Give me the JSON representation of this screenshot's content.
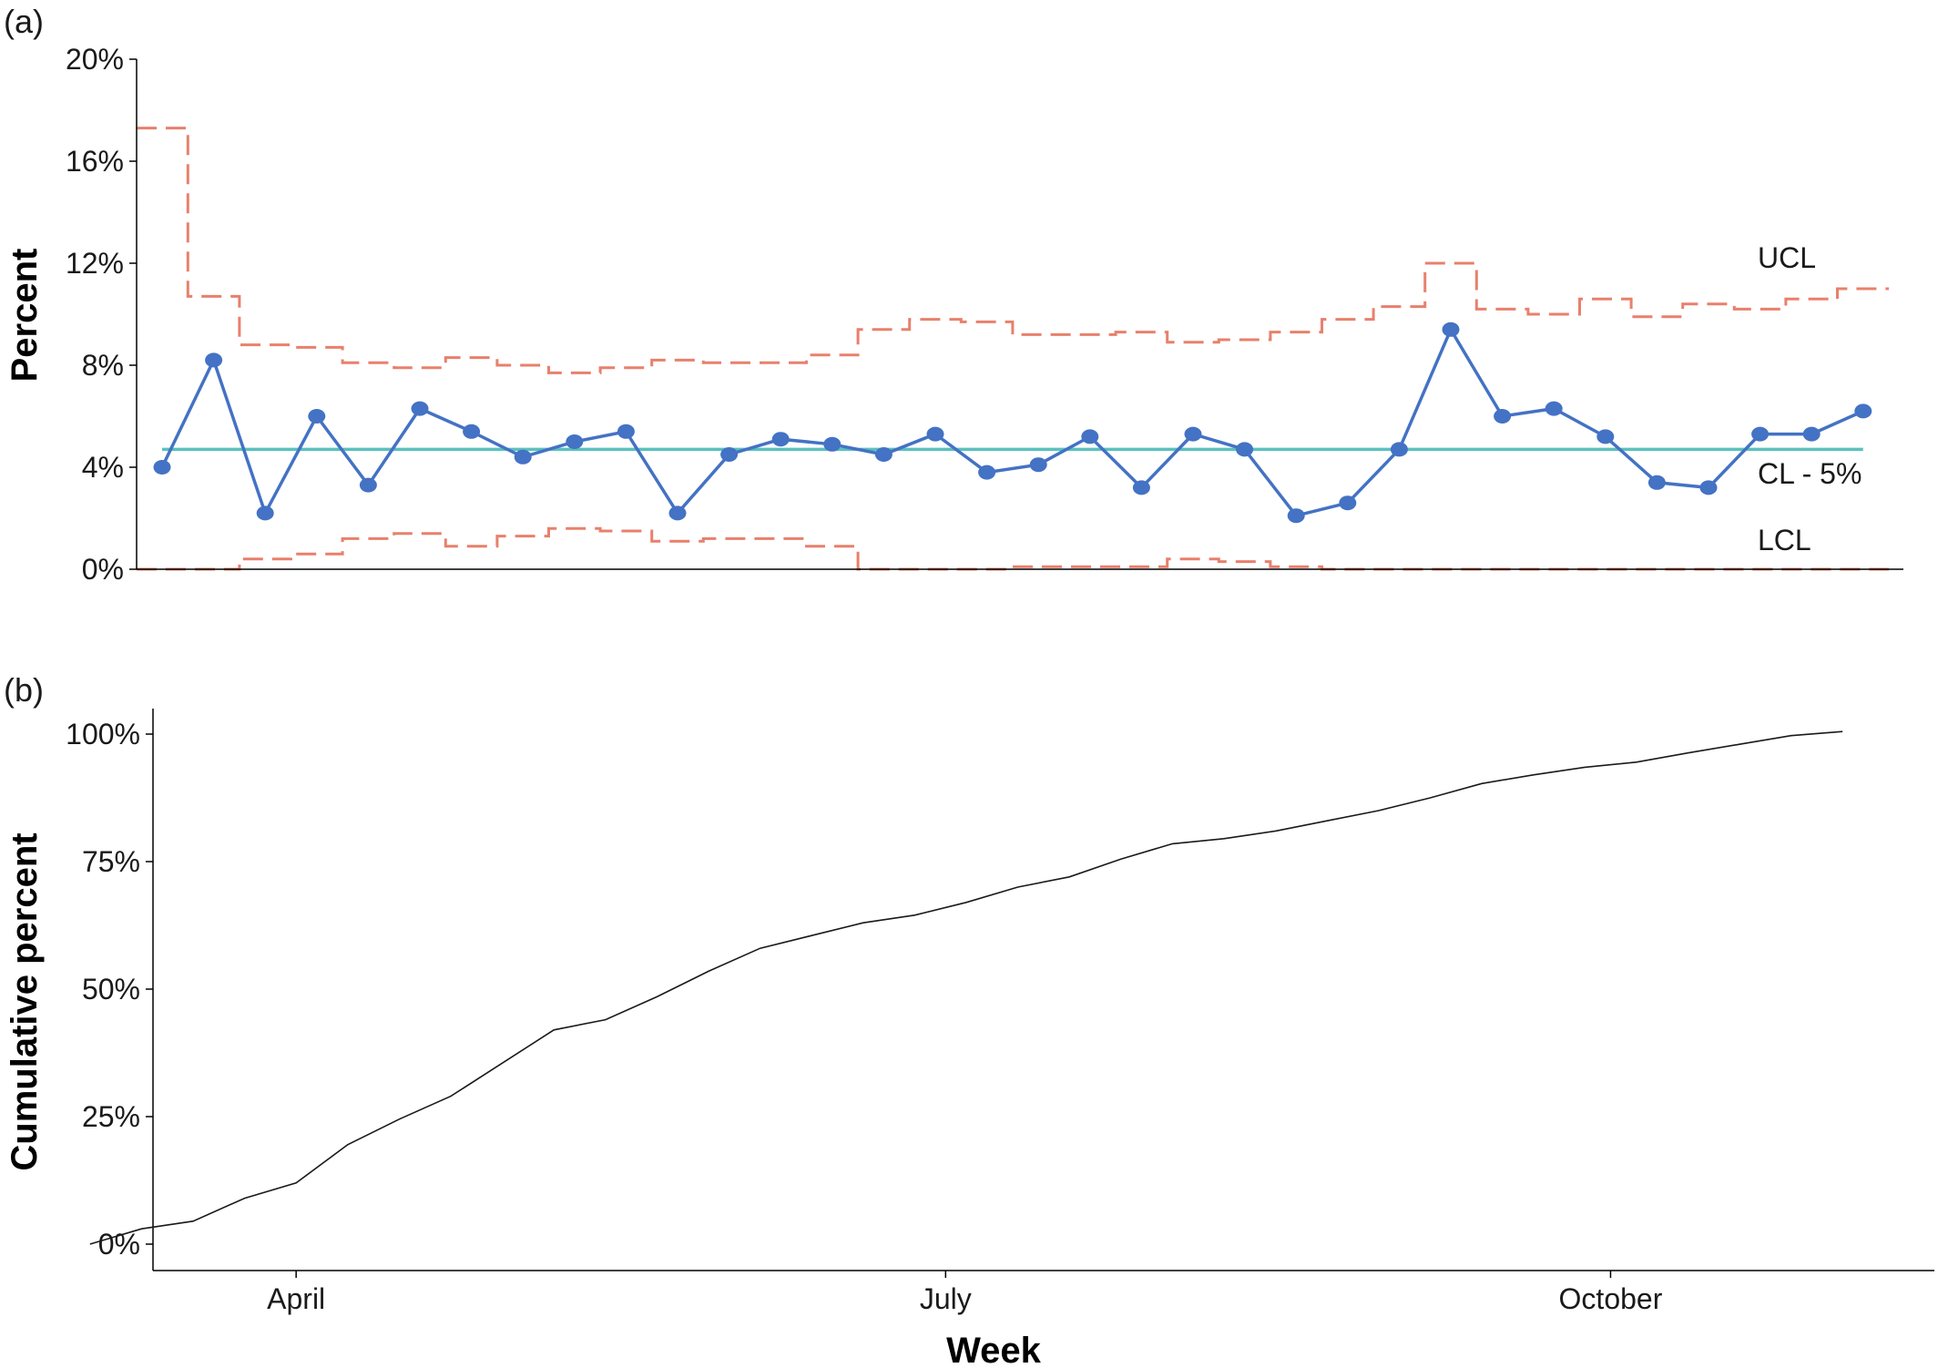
{
  "colors": {
    "series": "#4472c4",
    "center_line": "#5bc0be",
    "control_limits": "#e8806c",
    "cumulative": "#1a1a1a",
    "axis": "#000000"
  },
  "chart_data": [
    {
      "panel": "(a)",
      "type": "line",
      "ylabel": "Percent",
      "ylim": [
        0,
        20
      ],
      "yticks": [
        0,
        4,
        8,
        12,
        16,
        20
      ],
      "ytick_labels": [
        "0%",
        "4%",
        "8%",
        "12%",
        "16%",
        "20%"
      ],
      "grid": false,
      "weeks": [
        1,
        2,
        3,
        4,
        5,
        6,
        7,
        8,
        9,
        10,
        11,
        12,
        13,
        14,
        15,
        16,
        17,
        18,
        19,
        20,
        21,
        22,
        23,
        24,
        25,
        26,
        27,
        28,
        29,
        30,
        31,
        32,
        33,
        34
      ],
      "percent": [
        4.0,
        8.2,
        2.2,
        6.0,
        3.3,
        6.3,
        5.4,
        4.4,
        5.0,
        5.4,
        2.2,
        4.5,
        5.1,
        4.9,
        4.5,
        5.3,
        3.8,
        4.1,
        5.2,
        3.2,
        5.3,
        4.7,
        2.1,
        2.6,
        4.7,
        9.4,
        6.0,
        6.3,
        5.2,
        3.4,
        3.2,
        5.3,
        5.3,
        6.2
      ],
      "ucl": [
        17.3,
        10.7,
        8.8,
        8.7,
        8.1,
        7.9,
        8.3,
        8.0,
        7.7,
        7.9,
        8.2,
        8.1,
        8.1,
        8.4,
        9.4,
        9.8,
        9.7,
        9.2,
        9.2,
        9.3,
        8.9,
        9.0,
        9.3,
        9.8,
        10.3,
        12.0,
        10.2,
        10.0,
        10.6,
        9.9,
        10.4,
        10.2,
        10.6,
        11.0
      ],
      "lcl": [
        0,
        0,
        0.4,
        0.6,
        1.2,
        1.4,
        0.9,
        1.3,
        1.6,
        1.5,
        1.1,
        1.2,
        1.2,
        0.9,
        0,
        0,
        0,
        0.1,
        0.1,
        0.1,
        0.4,
        0.3,
        0.1,
        0,
        0,
        0,
        0,
        0,
        0,
        0,
        0,
        0,
        0,
        0
      ],
      "center_line": 4.7,
      "labels": {
        "ucl": "UCL",
        "cl": "CL - 5%",
        "lcl": "LCL"
      }
    },
    {
      "panel": "(b)",
      "type": "line",
      "xlabel": "Week",
      "ylabel": "Cumulative percent",
      "ylim": [
        0,
        100
      ],
      "yticks": [
        0,
        25,
        50,
        75,
        100
      ],
      "ytick_labels": [
        "0%",
        "25%",
        "50%",
        "75%",
        "100%"
      ],
      "xticks": [
        {
          "week": 3.6,
          "label": "April"
        },
        {
          "week": 16.2,
          "label": "July"
        },
        {
          "week": 29.1,
          "label": "October"
        }
      ],
      "grid": false,
      "weeks": [
        -0.4,
        0.6,
        1.6,
        2.6,
        3.6,
        4.6,
        5.6,
        6.6,
        7.6,
        8.6,
        9.6,
        10.6,
        11.6,
        12.6,
        13.6,
        14.6,
        15.6,
        16.6,
        17.6,
        18.6,
        19.6,
        20.6,
        21.6,
        22.6,
        23.6,
        24.6,
        25.6,
        26.6,
        27.6,
        28.6,
        29.6,
        30.6,
        31.6,
        32.6,
        33.6
      ],
      "cumulative": [
        0,
        3,
        4.5,
        9,
        12,
        19.5,
        24.5,
        29,
        35.5,
        42,
        44,
        48.5,
        53.5,
        58,
        60.5,
        63,
        64.5,
        67,
        70,
        72,
        75.5,
        78.5,
        79.5,
        81,
        83,
        85,
        87.5,
        90.3,
        92,
        93.5,
        94.5,
        96.3,
        98,
        99.7,
        100.5
      ]
    }
  ]
}
